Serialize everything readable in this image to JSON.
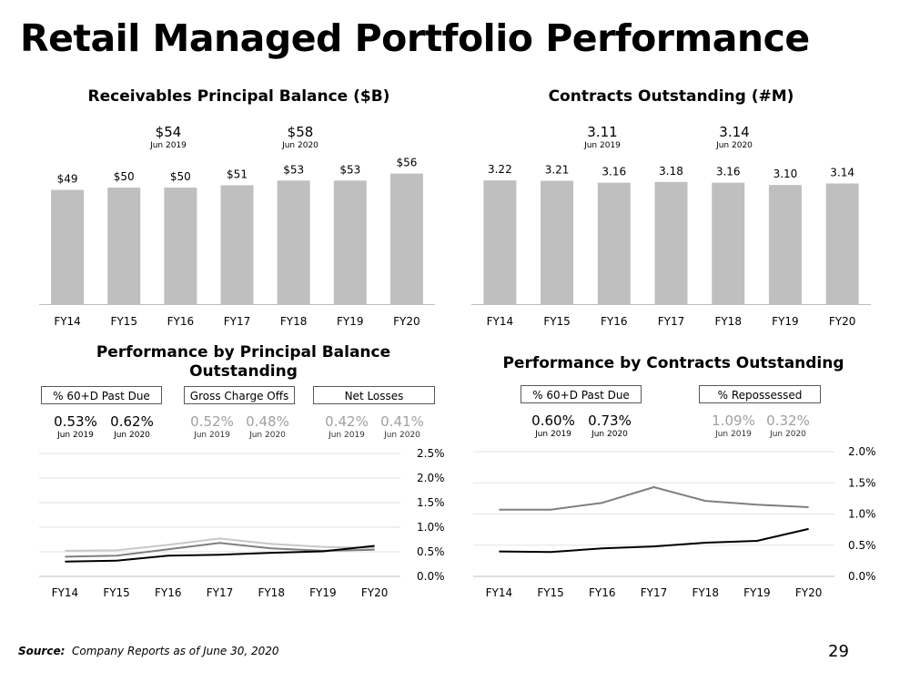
{
  "title": "Retail Managed Portfolio Performance",
  "source_label": "Source:",
  "source_text": "Company Reports as of June 30, 2020",
  "page_number": "29",
  "receivables": {
    "callouts": [
      {
        "value": "$54",
        "date": "Jun 2019"
      },
      {
        "value": "$58",
        "date": "Jun 2020"
      }
    ]
  },
  "contracts": {
    "callouts": [
      {
        "value": "3.11",
        "date": "Jun 2019"
      },
      {
        "value": "3.14",
        "date": "Jun 2020"
      }
    ]
  },
  "perf_balance": {
    "boxes": [
      {
        "label": "% 60+D Past Due",
        "stats": [
          {
            "value": "0.53%",
            "date": "Jun 2019"
          },
          {
            "value": "0.62%",
            "date": "Jun 2020"
          }
        ]
      },
      {
        "label": "Gross Charge Offs",
        "stats": [
          {
            "value": "0.52%",
            "date": "Jun 2019"
          },
          {
            "value": "0.48%",
            "date": "Jun 2020"
          }
        ]
      },
      {
        "label": "Net Losses",
        "stats": [
          {
            "value": "0.42%",
            "date": "Jun 2019"
          },
          {
            "value": "0.41%",
            "date": "Jun 2020"
          }
        ]
      }
    ]
  },
  "perf_contracts": {
    "boxes": [
      {
        "label": "% 60+D Past Due",
        "stats": [
          {
            "value": "0.60%",
            "date": "Jun 2019"
          },
          {
            "value": "0.73%",
            "date": "Jun 2020"
          }
        ]
      },
      {
        "label": "% Repossessed",
        "stats": [
          {
            "value": "1.09%",
            "date": "Jun 2019"
          },
          {
            "value": "0.32%",
            "date": "Jun 2020"
          }
        ]
      }
    ]
  },
  "chart_data": [
    {
      "type": "bar",
      "title": "Receivables Principal Balance ($B)",
      "categories": [
        "FY14",
        "FY15",
        "FY16",
        "FY17",
        "FY18",
        "FY19",
        "FY20"
      ],
      "values": [
        49,
        50,
        50,
        51,
        53,
        53,
        56
      ],
      "data_labels": [
        "$49",
        "$50",
        "$50",
        "$51",
        "$53",
        "$53",
        "$56"
      ],
      "ylim": [
        0,
        75
      ],
      "color": "#bfbfbf",
      "grid": false
    },
    {
      "type": "bar",
      "title": "Contracts Outstanding (#M)",
      "categories": [
        "FY14",
        "FY15",
        "FY16",
        "FY17",
        "FY18",
        "FY19",
        "FY20"
      ],
      "values": [
        3.22,
        3.21,
        3.16,
        3.18,
        3.16,
        3.1,
        3.14
      ],
      "data_labels": [
        "3.22",
        "3.21",
        "3.16",
        "3.18",
        "3.16",
        "3.10",
        "3.14"
      ],
      "ylim": [
        0,
        4.55
      ],
      "color": "#bfbfbf",
      "grid": false
    },
    {
      "type": "line",
      "title": "Performance by  Principal Balance Outstanding",
      "categories": [
        "FY14",
        "FY15",
        "FY16",
        "FY17",
        "FY18",
        "FY19",
        "FY20"
      ],
      "y_ticks": [
        "0.0%",
        "0.5%",
        "1.0%",
        "1.5%",
        "2.0%",
        "2.5%"
      ],
      "ylim": [
        0,
        2.5
      ],
      "grid": true,
      "series": [
        {
          "values": [
            0.52,
            0.53,
            0.64,
            0.77,
            0.66,
            0.6,
            0.58
          ],
          "color": "#c8c8c8"
        },
        {
          "values": [
            0.4,
            0.42,
            0.55,
            0.68,
            0.57,
            0.52,
            0.54
          ],
          "color": "#7f7f7f"
        },
        {
          "values": [
            0.3,
            0.32,
            0.42,
            0.44,
            0.48,
            0.51,
            0.62
          ],
          "color": "#000000"
        }
      ]
    },
    {
      "type": "line",
      "title": "Performance by  Contracts Outstanding",
      "categories": [
        "FY14",
        "FY15",
        "FY16",
        "FY17",
        "FY18",
        "FY19",
        "FY20"
      ],
      "y_ticks": [
        "0.0%",
        "0.5%",
        "1.0%",
        "1.5%",
        "2.0%"
      ],
      "ylim": [
        0,
        2.0
      ],
      "grid": true,
      "series": [
        {
          "values": [
            1.07,
            1.07,
            1.18,
            1.43,
            1.21,
            1.15,
            1.11
          ],
          "color": "#7f7f7f"
        },
        {
          "values": [
            0.4,
            0.39,
            0.45,
            0.48,
            0.54,
            0.57,
            0.76
          ],
          "color": "#000000"
        }
      ]
    }
  ]
}
